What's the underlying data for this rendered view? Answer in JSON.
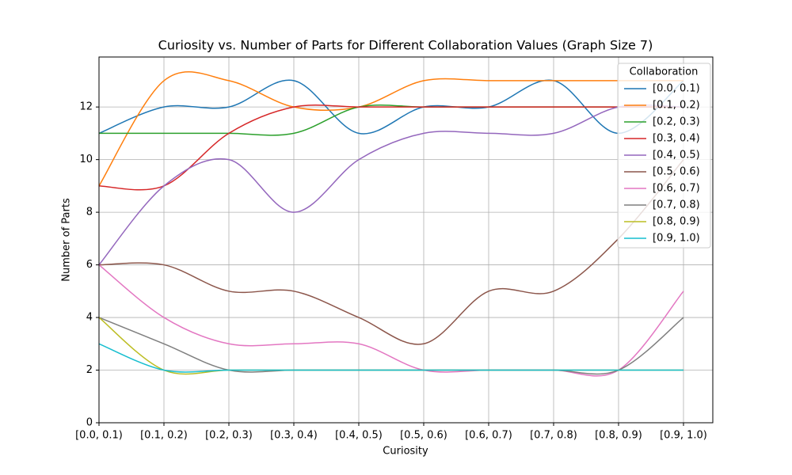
{
  "chart_data": {
    "type": "line",
    "title": "Curiosity vs. Number of Parts for Different Collaboration Values (Graph Size 7)",
    "x_label": "Curiosity",
    "y_label": "Number of Parts",
    "categories": [
      "[0.0, 0.1)",
      "[0.1, 0.2)",
      "[0.2, 0.3)",
      "[0.3, 0.4)",
      "[0.4, 0.5)",
      "[0.5, 0.6)",
      "[0.6, 0.7)",
      "[0.7, 0.8)",
      "[0.8, 0.9)",
      "[0.9, 1.0)"
    ],
    "ylim": [
      0,
      13.9
    ],
    "yticks": [
      0,
      2,
      4,
      6,
      8,
      10,
      12
    ],
    "grid": true,
    "legend_title": "Collaboration",
    "legend_position": "upper right",
    "series": [
      {
        "name": "[0.0, 0.1)",
        "color": "#1f77b4",
        "values": [
          11,
          12,
          12,
          13,
          11,
          12,
          12,
          13,
          11,
          13
        ]
      },
      {
        "name": "[0.1, 0.2)",
        "color": "#ff7f0e",
        "values": [
          9,
          13,
          13,
          12,
          12,
          13,
          13,
          13,
          13,
          13
        ]
      },
      {
        "name": "[0.2, 0.3)",
        "color": "#2ca02c",
        "values": [
          11,
          11,
          11,
          11,
          12,
          12,
          12,
          12,
          12,
          12
        ]
      },
      {
        "name": "[0.3, 0.4)",
        "color": "#d62728",
        "values": [
          9,
          9,
          11,
          12,
          12,
          12,
          12,
          12,
          12,
          12
        ]
      },
      {
        "name": "[0.4, 0.5)",
        "color": "#9467bd",
        "values": [
          6,
          9,
          10,
          8,
          10,
          11,
          11,
          11,
          12,
          12
        ]
      },
      {
        "name": "[0.5, 0.6)",
        "color": "#8c564b",
        "values": [
          6,
          6,
          5,
          5,
          4,
          3,
          5,
          5,
          7,
          10
        ]
      },
      {
        "name": "[0.6, 0.7)",
        "color": "#e377c2",
        "values": [
          6,
          4,
          3,
          3,
          3,
          2,
          2,
          2,
          2,
          5
        ]
      },
      {
        "name": "[0.7, 0.8)",
        "color": "#7f7f7f",
        "values": [
          4,
          3,
          2,
          2,
          2,
          2,
          2,
          2,
          2,
          4
        ]
      },
      {
        "name": "[0.8, 0.9)",
        "color": "#bcbd22",
        "values": [
          4,
          2,
          2,
          2,
          2,
          2,
          2,
          2,
          2,
          2
        ]
      },
      {
        "name": "[0.9, 1.0)",
        "color": "#17becf",
        "values": [
          3,
          2,
          2,
          2,
          2,
          2,
          2,
          2,
          2,
          2
        ]
      }
    ]
  }
}
